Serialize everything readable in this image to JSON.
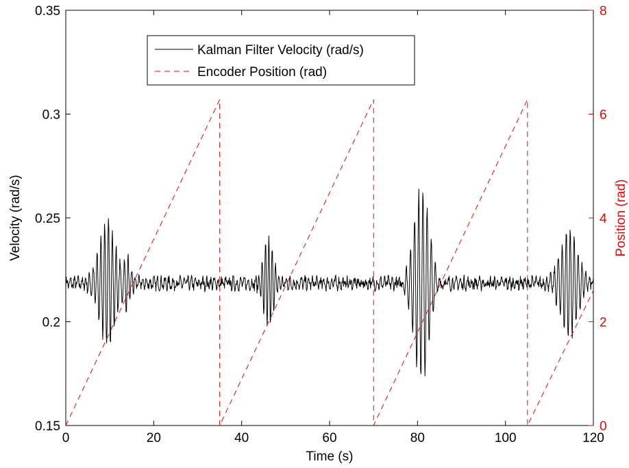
{
  "chart_data": {
    "type": "line",
    "xlabel": "Time (s)",
    "ylabel_left": "Velocity (rad/s)",
    "ylabel_right": "Position (rad)",
    "xlim": [
      0,
      120
    ],
    "ylim_left": [
      0.15,
      0.35
    ],
    "ylim_right": [
      0,
      8
    ],
    "x_ticks": [
      0,
      20,
      40,
      60,
      80,
      100,
      120
    ],
    "y_ticks_left": [
      0.15,
      0.2,
      0.25,
      0.3,
      0.35
    ],
    "y_ticks_right": [
      0,
      2,
      4,
      6,
      8
    ],
    "grid": false,
    "legend_placement": "top-left",
    "colors": {
      "velocity": "#000000",
      "position": "#ff0000",
      "axis": "#000000",
      "right_axis": "#ff0000"
    },
    "series": [
      {
        "name": "Kalman Filter Velocity (rad/s)",
        "axis": "left",
        "style": "solid",
        "baseline": 0.2185,
        "noise_amplitude": 0.003,
        "bursts": [
          {
            "center": 9.5,
            "width": 2.6,
            "amplitude": 0.028,
            "frequency": 1.15
          },
          {
            "center": 14.0,
            "width": 1.2,
            "amplitude": 0.012,
            "frequency": 1.2
          },
          {
            "center": 46.0,
            "width": 1.6,
            "amplitude": 0.024,
            "frequency": 1.3
          },
          {
            "center": 81.0,
            "width": 2.6,
            "amplitude": 0.045,
            "frequency": 1.05
          },
          {
            "center": 114.5,
            "width": 2.8,
            "amplitude": 0.025,
            "frequency": 1.1
          }
        ],
        "points": [
          [
            0,
            0.228
          ],
          [
            9.3,
            0.246
          ],
          [
            10.1,
            0.188
          ],
          [
            46.4,
            0.251
          ],
          [
            47.0,
            0.191
          ],
          [
            80.4,
            0.263
          ],
          [
            81.2,
            0.167
          ],
          [
            113.5,
            0.245
          ],
          [
            115.2,
            0.193
          ],
          [
            120,
            0.218
          ]
        ]
      },
      {
        "name": "Encoder Position (rad)",
        "axis": "right",
        "style": "dashed",
        "points": [
          [
            0,
            0
          ],
          [
            35,
            6.28
          ],
          [
            35,
            0
          ],
          [
            70,
            6.28
          ],
          [
            70,
            0
          ],
          [
            105,
            6.28
          ],
          [
            105,
            0
          ],
          [
            120,
            2.6
          ]
        ]
      }
    ]
  }
}
